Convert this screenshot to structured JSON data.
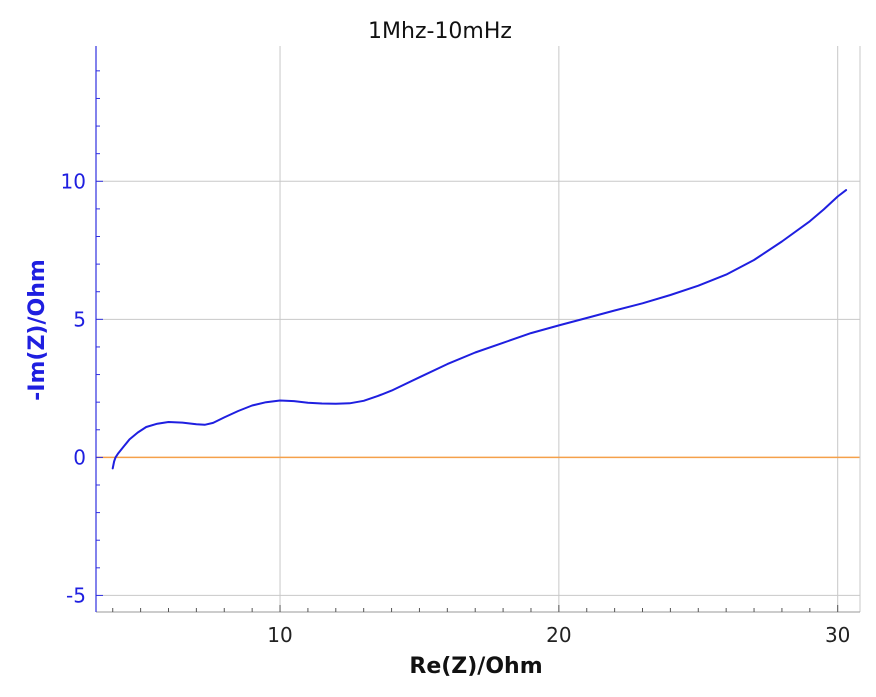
{
  "chart_data": {
    "type": "line",
    "title": "1Mhz-10mHz",
    "xlabel": "Re(Z)/Ohm",
    "ylabel": "-Im(Z)/Ohm",
    "xlim": [
      3.4,
      30.8
    ],
    "ylim": [
      -5.6,
      14.9
    ],
    "x_ticks": [
      10,
      20,
      30
    ],
    "x_tick_labels": [
      "10",
      "20",
      "30"
    ],
    "y_ticks": [
      -5,
      0,
      5,
      10
    ],
    "y_tick_labels": [
      "-5",
      "0",
      "5",
      "10"
    ],
    "grid": true,
    "colors": {
      "series": "#1f1fe0",
      "zero_line": "#f5a04a",
      "grid": "#c8c8c8",
      "y_axis": "#3030e0"
    },
    "zero_line": 0,
    "series": [
      {
        "points": [
          [
            4.0,
            -0.4
          ],
          [
            4.05,
            -0.15
          ],
          [
            4.1,
            0.0
          ],
          [
            4.2,
            0.15
          ],
          [
            4.4,
            0.4
          ],
          [
            4.6,
            0.65
          ],
          [
            4.9,
            0.9
          ],
          [
            5.2,
            1.1
          ],
          [
            5.6,
            1.22
          ],
          [
            6.0,
            1.28
          ],
          [
            6.5,
            1.26
          ],
          [
            7.0,
            1.2
          ],
          [
            7.3,
            1.18
          ],
          [
            7.6,
            1.25
          ],
          [
            8.0,
            1.45
          ],
          [
            8.5,
            1.68
          ],
          [
            9.0,
            1.88
          ],
          [
            9.5,
            2.0
          ],
          [
            10.0,
            2.06
          ],
          [
            10.5,
            2.04
          ],
          [
            11.0,
            1.98
          ],
          [
            11.5,
            1.95
          ],
          [
            12.0,
            1.94
          ],
          [
            12.5,
            1.96
          ],
          [
            13.0,
            2.05
          ],
          [
            13.5,
            2.22
          ],
          [
            14.0,
            2.42
          ],
          [
            15.0,
            2.9
          ],
          [
            16.0,
            3.38
          ],
          [
            17.0,
            3.8
          ],
          [
            18.0,
            4.15
          ],
          [
            19.0,
            4.5
          ],
          [
            20.0,
            4.78
          ],
          [
            21.0,
            5.05
          ],
          [
            22.0,
            5.32
          ],
          [
            23.0,
            5.58
          ],
          [
            24.0,
            5.88
          ],
          [
            25.0,
            6.22
          ],
          [
            26.0,
            6.62
          ],
          [
            27.0,
            7.15
          ],
          [
            28.0,
            7.82
          ],
          [
            29.0,
            8.55
          ],
          [
            29.5,
            8.98
          ],
          [
            30.0,
            9.45
          ],
          [
            30.3,
            9.68
          ]
        ]
      }
    ]
  }
}
